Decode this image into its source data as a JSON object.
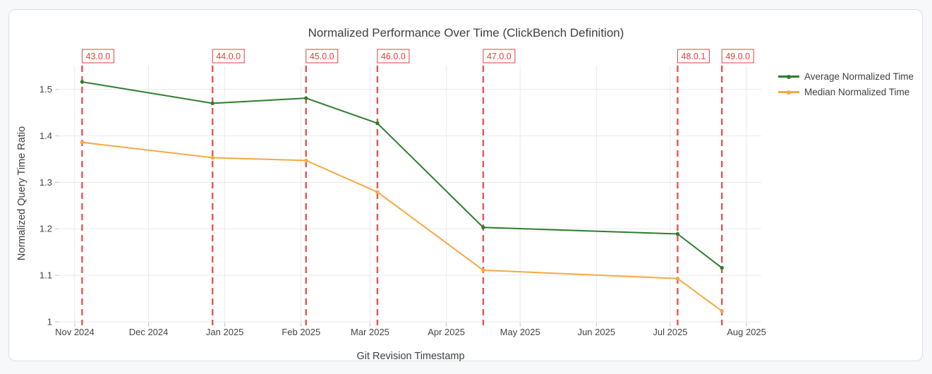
{
  "chart_data": {
    "type": "line",
    "title": "Normalized Performance Over Time (ClickBench Definition)",
    "xlabel": "Git Revision Timestamp",
    "ylabel": "Normalized Query Time Ratio",
    "x_range": [
      "2024-10-26",
      "2025-08-07"
    ],
    "ylim": [
      1.0,
      1.551
    ],
    "grid": true,
    "grid_color": "#e9eaed",
    "tick_color": "#c2c6cc",
    "label_color": "#444444",
    "background_color": "#f6f8fa",
    "card_color": "#ffffff",
    "x_ticks": [
      {
        "label": "Nov 2024",
        "date": "2024-11-01"
      },
      {
        "label": "Dec 2024",
        "date": "2024-12-01"
      },
      {
        "label": "Jan 2025",
        "date": "2025-01-01"
      },
      {
        "label": "Feb 2025",
        "date": "2025-02-01"
      },
      {
        "label": "Mar 2025",
        "date": "2025-03-01"
      },
      {
        "label": "Apr 2025",
        "date": "2025-04-01"
      },
      {
        "label": "May 2025",
        "date": "2025-05-01"
      },
      {
        "label": "Jun 2025",
        "date": "2025-06-01"
      },
      {
        "label": "Jul 2025",
        "date": "2025-07-01"
      },
      {
        "label": "Aug 2025",
        "date": "2025-08-01"
      }
    ],
    "y_ticks": [
      {
        "label": "1",
        "value": 1.0
      },
      {
        "label": "1.1",
        "value": 1.1
      },
      {
        "label": "1.2",
        "value": 1.2
      },
      {
        "label": "1.3",
        "value": 1.3
      },
      {
        "label": "1.4",
        "value": 1.4
      },
      {
        "label": "1.5",
        "value": 1.5
      }
    ],
    "x_dates": [
      "2024-11-04",
      "2024-12-27",
      "2025-02-03",
      "2025-03-04",
      "2025-04-16",
      "2025-07-04",
      "2025-07-22"
    ],
    "series": [
      {
        "name": "Average Normalized Time",
        "color": "#2e7d2e",
        "values": [
          1.516,
          1.47,
          1.481,
          1.427,
          1.203,
          1.189,
          1.116
        ]
      },
      {
        "name": "Median Normalized Time",
        "color": "#f6a843",
        "values": [
          1.386,
          1.353,
          1.347,
          1.279,
          1.111,
          1.093,
          1.023
        ]
      }
    ],
    "annotations": [
      {
        "label": "43.0.0",
        "date": "2024-11-04"
      },
      {
        "label": "44.0.0",
        "date": "2024-12-27"
      },
      {
        "label": "45.0.0",
        "date": "2025-02-03"
      },
      {
        "label": "46.0.0",
        "date": "2025-03-04"
      },
      {
        "label": "47.0.0",
        "date": "2025-04-16"
      },
      {
        "label": "48.0.1",
        "date": "2025-07-04"
      },
      {
        "label": "49.0.0",
        "date": "2025-07-22"
      }
    ],
    "annotation_color": "#e5413e",
    "legend_position": "top-right-outside"
  }
}
